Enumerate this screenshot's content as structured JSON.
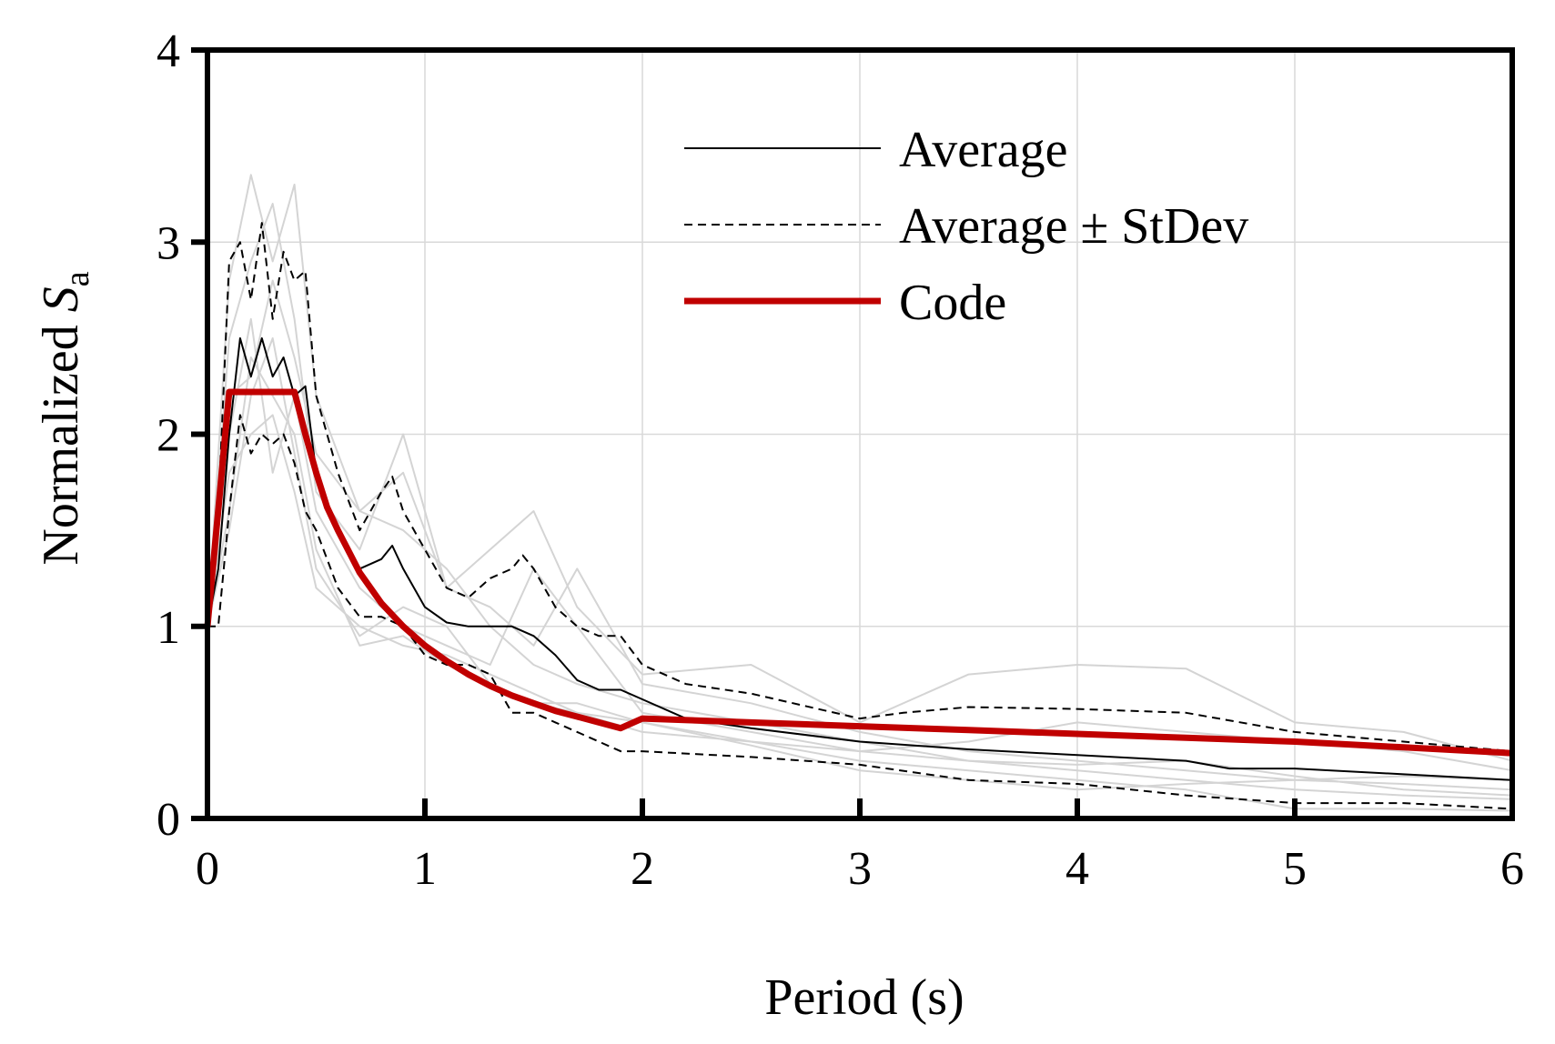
{
  "chart_data": {
    "type": "line",
    "xlabel": "Period (s)",
    "ylabel": {
      "main": "Normalized ",
      "italic": "S",
      "subscript": "a"
    },
    "xlim": [
      0,
      6
    ],
    "ylim": [
      0,
      4
    ],
    "xticks": [
      "0",
      "1",
      "2",
      "3",
      "4",
      "5",
      "6"
    ],
    "yticks": [
      "0",
      "1",
      "2",
      "3",
      "4"
    ],
    "grid": true,
    "legend_position": "top-right",
    "colors": {
      "average": "#000000",
      "stdev": "#000000",
      "code": "#c00000",
      "records": "#d4d4d4",
      "grid": "#d9d9d9"
    },
    "series": [
      {
        "name": "Average",
        "style": "solid",
        "x": [
          0,
          0.05,
          0.1,
          0.15,
          0.2,
          0.25,
          0.3,
          0.35,
          0.4,
          0.45,
          0.5,
          0.6,
          0.7,
          0.8,
          0.85,
          0.9,
          1.0,
          1.1,
          1.2,
          1.3,
          1.4,
          1.5,
          1.6,
          1.7,
          1.8,
          1.9,
          2.0,
          2.2,
          2.5,
          3.0,
          3.5,
          4.0,
          4.5,
          4.7,
          5.0,
          5.5,
          6.0
        ],
        "y": [
          1.0,
          1.3,
          2.0,
          2.5,
          2.3,
          2.5,
          2.3,
          2.4,
          2.2,
          2.25,
          1.8,
          1.5,
          1.3,
          1.35,
          1.42,
          1.3,
          1.1,
          1.02,
          1.0,
          1.0,
          1.0,
          0.95,
          0.85,
          0.72,
          0.67,
          0.67,
          0.62,
          0.52,
          0.47,
          0.4,
          0.36,
          0.33,
          0.3,
          0.26,
          0.26,
          0.23,
          0.2
        ]
      },
      {
        "name": "Average ± StDev",
        "style": "dashed",
        "x": [
          0,
          0.05,
          0.1,
          0.15,
          0.2,
          0.25,
          0.3,
          0.35,
          0.4,
          0.45,
          0.5,
          0.6,
          0.7,
          0.8,
          0.85,
          0.9,
          1.0,
          1.1,
          1.2,
          1.3,
          1.4,
          1.45,
          1.5,
          1.6,
          1.7,
          1.8,
          1.9,
          2.0,
          2.2,
          2.5,
          3.0,
          3.2,
          3.5,
          4.0,
          4.5,
          5.0,
          5.5,
          6.0
        ],
        "y": [
          1.0,
          1.6,
          2.9,
          3.0,
          2.7,
          3.1,
          2.6,
          2.95,
          2.8,
          2.85,
          2.2,
          1.8,
          1.5,
          1.7,
          1.78,
          1.6,
          1.4,
          1.2,
          1.15,
          1.25,
          1.3,
          1.37,
          1.3,
          1.1,
          1.0,
          0.95,
          0.95,
          0.8,
          0.7,
          0.65,
          0.52,
          0.55,
          0.58,
          0.57,
          0.55,
          0.45,
          0.4,
          0.35
        ]
      },
      {
        "name": "Average ± StDev",
        "style": "dashed",
        "x": [
          0,
          0.05,
          0.1,
          0.15,
          0.2,
          0.25,
          0.3,
          0.35,
          0.4,
          0.45,
          0.5,
          0.6,
          0.7,
          0.8,
          0.9,
          1.0,
          1.1,
          1.2,
          1.3,
          1.4,
          1.5,
          1.6,
          1.7,
          1.8,
          1.9,
          2.0,
          2.5,
          3.0,
          3.5,
          4.0,
          4.5,
          5.0,
          5.5,
          6.0
        ],
        "y": [
          1.0,
          1.0,
          1.6,
          2.1,
          1.9,
          2.0,
          1.95,
          2.0,
          1.85,
          1.6,
          1.5,
          1.2,
          1.05,
          1.05,
          1.0,
          0.85,
          0.8,
          0.8,
          0.75,
          0.55,
          0.55,
          0.5,
          0.45,
          0.4,
          0.35,
          0.35,
          0.32,
          0.28,
          0.2,
          0.18,
          0.12,
          0.08,
          0.08,
          0.05
        ]
      },
      {
        "name": "Code",
        "style": "thick",
        "x": [
          0,
          0.1,
          0.2,
          0.3,
          0.4,
          0.45,
          0.5,
          0.55,
          0.6,
          0.7,
          0.8,
          0.9,
          1.0,
          1.1,
          1.2,
          1.3,
          1.4,
          1.5,
          1.6,
          1.7,
          1.8,
          1.9,
          2.0,
          2.5,
          3.0,
          3.5,
          4.0,
          4.5,
          5.0,
          5.5,
          6.0
        ],
        "y": [
          1.0,
          2.22,
          2.22,
          2.22,
          2.22,
          2.0,
          1.8,
          1.62,
          1.5,
          1.28,
          1.12,
          1.0,
          0.9,
          0.82,
          0.75,
          0.69,
          0.64,
          0.6,
          0.56,
          0.53,
          0.5,
          0.47,
          0.52,
          0.5,
          0.48,
          0.46,
          0.44,
          0.42,
          0.4,
          0.37,
          0.34
        ]
      }
    ],
    "background_records": [
      {
        "x": [
          0,
          0.1,
          0.2,
          0.3,
          0.4,
          0.5,
          0.7,
          0.9,
          1.1,
          1.3,
          1.5,
          1.7,
          2.0,
          2.5,
          3.0,
          3.5,
          4.0,
          4.5,
          5.0,
          5.5,
          6.0
        ],
        "y": [
          1.0,
          2.8,
          3.35,
          2.9,
          3.3,
          2.2,
          1.6,
          1.8,
          1.2,
          1.4,
          1.6,
          1.1,
          0.75,
          0.8,
          0.5,
          0.75,
          0.8,
          0.78,
          0.5,
          0.45,
          0.3
        ]
      },
      {
        "x": [
          0,
          0.1,
          0.2,
          0.3,
          0.4,
          0.5,
          0.7,
          0.9,
          1.1,
          1.3,
          1.5,
          1.7,
          2.0,
          2.5,
          3.0,
          3.5,
          4.0,
          4.5,
          5.0,
          5.5,
          6.0
        ],
        "y": [
          1.0,
          2.0,
          2.6,
          1.8,
          2.2,
          1.6,
          1.2,
          1.0,
          0.9,
          0.8,
          1.3,
          1.0,
          0.55,
          0.45,
          0.35,
          0.3,
          0.25,
          0.2,
          0.15,
          0.12,
          0.1
        ]
      },
      {
        "x": [
          0,
          0.1,
          0.2,
          0.3,
          0.4,
          0.5,
          0.7,
          0.9,
          1.1,
          1.3,
          1.5,
          1.7,
          2.0,
          2.5,
          3.0,
          3.5,
          4.0,
          4.5,
          5.0,
          5.5,
          6.0
        ],
        "y": [
          1.0,
          1.5,
          2.2,
          2.5,
          1.9,
          1.3,
          0.95,
          1.1,
          1.0,
          0.7,
          0.6,
          0.6,
          0.5,
          0.4,
          0.3,
          0.25,
          0.2,
          0.15,
          0.05,
          0.05,
          0.04
        ]
      },
      {
        "x": [
          0,
          0.1,
          0.2,
          0.3,
          0.4,
          0.5,
          0.7,
          0.9,
          1.1,
          1.3,
          1.5,
          1.7,
          2.0,
          2.5,
          3.0,
          3.5,
          4.0,
          4.5,
          5.0,
          5.5,
          6.0
        ],
        "y": [
          1.0,
          2.5,
          2.9,
          3.2,
          2.6,
          1.7,
          1.4,
          2.0,
          1.2,
          1.1,
          0.9,
          1.3,
          0.7,
          0.6,
          0.45,
          0.35,
          0.3,
          0.25,
          0.2,
          0.18,
          0.15
        ]
      },
      {
        "x": [
          0,
          0.1,
          0.2,
          0.3,
          0.4,
          0.5,
          0.7,
          0.9,
          1.1,
          1.3,
          1.5,
          1.7,
          2.0,
          2.5,
          3.0,
          3.5,
          4.0,
          4.5,
          5.0,
          5.5,
          6.0
        ],
        "y": [
          1.0,
          1.8,
          2.0,
          2.1,
          1.7,
          1.2,
          1.0,
          0.9,
          0.85,
          0.75,
          0.65,
          0.55,
          0.45,
          0.4,
          0.35,
          0.4,
          0.5,
          0.45,
          0.4,
          0.35,
          0.25
        ]
      },
      {
        "x": [
          0,
          0.1,
          0.2,
          0.3,
          0.4,
          0.5,
          0.7,
          0.9,
          1.1,
          1.3,
          1.5,
          1.7,
          2.0,
          2.5,
          3.0,
          3.5,
          4.0,
          4.5,
          5.0,
          5.5,
          6.0
        ],
        "y": [
          1.0,
          2.2,
          2.3,
          2.8,
          2.4,
          1.9,
          1.6,
          1.5,
          1.3,
          1.0,
          0.8,
          0.7,
          0.6,
          0.5,
          0.4,
          0.3,
          0.28,
          0.3,
          0.22,
          0.15,
          0.12
        ]
      },
      {
        "x": [
          0,
          0.1,
          0.2,
          0.3,
          0.4,
          0.5,
          0.7,
          0.9,
          1.1,
          1.3,
          1.5,
          1.7,
          2.0,
          2.5,
          3.0,
          3.5,
          4.0,
          4.5,
          5.0,
          5.5,
          6.0
        ],
        "y": [
          1.0,
          1.6,
          2.4,
          2.2,
          2.0,
          1.4,
          0.9,
          0.95,
          0.8,
          0.7,
          0.6,
          0.55,
          0.5,
          0.38,
          0.25,
          0.2,
          0.15,
          0.18,
          0.2,
          0.22,
          0.2
        ]
      }
    ]
  }
}
